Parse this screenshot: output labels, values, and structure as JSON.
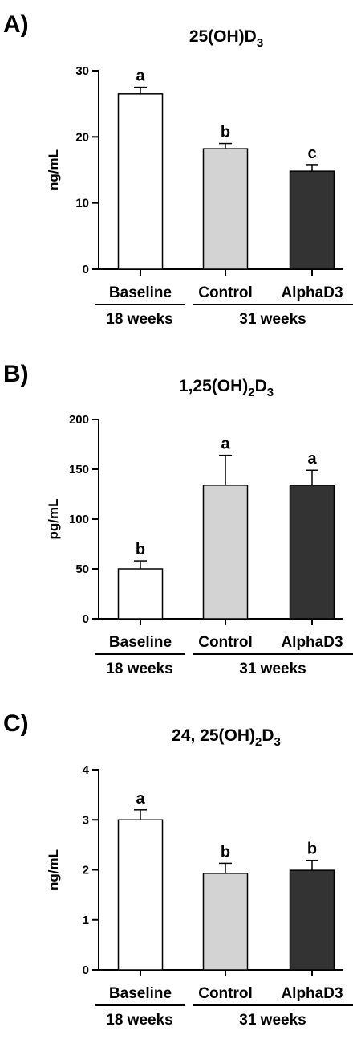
{
  "chart_data": [
    {
      "type": "bar",
      "panel": "A)",
      "title_main": "25(OH)D",
      "title_sub": "3",
      "title_tail": "",
      "ylabel": "ng/mL",
      "ylim": [
        0,
        30
      ],
      "yticks": [
        0,
        10,
        20,
        30
      ],
      "categories": [
        "Baseline",
        "Control",
        "AlphaD3"
      ],
      "values": [
        26.5,
        18.2,
        14.8
      ],
      "errors": [
        1.0,
        0.8,
        1.0
      ],
      "significance": [
        "a",
        "b",
        "c"
      ],
      "colors": [
        "#ffffff",
        "#d3d3d3",
        "#333333"
      ],
      "groups": [
        {
          "label": "18 weeks",
          "categories": [
            "Baseline"
          ]
        },
        {
          "label": "31 weeks",
          "categories": [
            "Control",
            "AlphaD3"
          ]
        }
      ]
    },
    {
      "type": "bar",
      "panel": "B)",
      "title_main": "1,25(OH)",
      "title_sub": "2",
      "title_tail": "D",
      "title_sub2": "3",
      "ylabel": "pg/mL",
      "ylim": [
        0,
        200
      ],
      "yticks": [
        0,
        50,
        100,
        150,
        200
      ],
      "categories": [
        "Baseline",
        "Control",
        "AlphaD3"
      ],
      "values": [
        50,
        134,
        134
      ],
      "errors": [
        8,
        30,
        15
      ],
      "significance": [
        "b",
        "a",
        "a"
      ],
      "colors": [
        "#ffffff",
        "#d3d3d3",
        "#333333"
      ],
      "groups": [
        {
          "label": "18 weeks",
          "categories": [
            "Baseline"
          ]
        },
        {
          "label": "31 weeks",
          "categories": [
            "Control",
            "AlphaD3"
          ]
        }
      ]
    },
    {
      "type": "bar",
      "panel": "C)",
      "title_main": "24, 25(OH)",
      "title_sub": "2",
      "title_tail": "D",
      "title_sub2": "3",
      "ylabel": "ng/mL",
      "ylim": [
        0,
        4
      ],
      "yticks": [
        0,
        1,
        2,
        3,
        4
      ],
      "categories": [
        "Baseline",
        "Control",
        "AlphaD3"
      ],
      "values": [
        3.0,
        1.93,
        1.99
      ],
      "errors": [
        0.2,
        0.2,
        0.2
      ],
      "significance": [
        "a",
        "b",
        "b"
      ],
      "colors": [
        "#ffffff",
        "#d3d3d3",
        "#333333"
      ],
      "groups": [
        {
          "label": "18 weeks",
          "categories": [
            "Baseline"
          ]
        },
        {
          "label": "31 weeks",
          "categories": [
            "Control",
            "AlphaD3"
          ]
        }
      ]
    }
  ]
}
